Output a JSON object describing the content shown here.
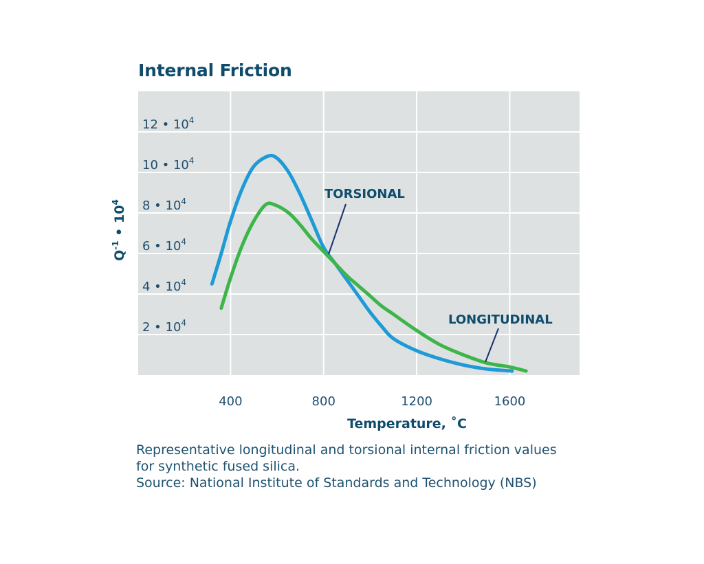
{
  "chart_data": {
    "type": "line",
    "title": "Internal Friction",
    "xlabel": "Temperature, ˚C",
    "ylabel": "Q-1 • 10⁴",
    "xlim": [
      0,
      1900
    ],
    "ylim": [
      0,
      14
    ],
    "x_ticks": [
      {
        "value": 400,
        "label": "400"
      },
      {
        "value": 800,
        "label": "800"
      },
      {
        "value": 1200,
        "label": "1200"
      },
      {
        "value": 1600,
        "label": "1600"
      }
    ],
    "y_ticks": [
      {
        "value": 2,
        "label": "2 • 10⁴"
      },
      {
        "value": 4,
        "label": "4 • 10⁴"
      },
      {
        "value": 6,
        "label": "6 • 10⁴"
      },
      {
        "value": 8,
        "label": "8 • 10⁴"
      },
      {
        "value": 10,
        "label": "10 • 10⁴"
      },
      {
        "value": 12,
        "label": "12 • 10⁴"
      }
    ],
    "x_gridlines": [
      0,
      400,
      800,
      1200,
      1600
    ],
    "grid": true,
    "series": [
      {
        "name": "TORSIONAL",
        "color": "#1e9ad6",
        "points": [
          [
            320,
            4.5
          ],
          [
            360,
            6.0
          ],
          [
            400,
            7.6
          ],
          [
            450,
            9.2
          ],
          [
            500,
            10.3
          ],
          [
            560,
            10.8
          ],
          [
            600,
            10.7
          ],
          [
            650,
            10.0
          ],
          [
            700,
            8.9
          ],
          [
            750,
            7.6
          ],
          [
            800,
            6.3
          ],
          [
            850,
            5.5
          ],
          [
            900,
            4.7
          ],
          [
            950,
            3.9
          ],
          [
            1000,
            3.1
          ],
          [
            1050,
            2.4
          ],
          [
            1100,
            1.8
          ],
          [
            1200,
            1.2
          ],
          [
            1300,
            0.8
          ],
          [
            1400,
            0.5
          ],
          [
            1500,
            0.3
          ],
          [
            1610,
            0.2
          ]
        ]
      },
      {
        "name": "LONGITUDINAL",
        "color": "#3db54a",
        "points": [
          [
            360,
            3.3
          ],
          [
            400,
            4.8
          ],
          [
            450,
            6.4
          ],
          [
            500,
            7.6
          ],
          [
            550,
            8.4
          ],
          [
            590,
            8.4
          ],
          [
            650,
            8.0
          ],
          [
            700,
            7.4
          ],
          [
            750,
            6.7
          ],
          [
            800,
            6.1
          ],
          [
            850,
            5.5
          ],
          [
            900,
            4.9
          ],
          [
            950,
            4.4
          ],
          [
            1000,
            3.9
          ],
          [
            1050,
            3.4
          ],
          [
            1100,
            3.0
          ],
          [
            1200,
            2.2
          ],
          [
            1300,
            1.5
          ],
          [
            1400,
            1.0
          ],
          [
            1500,
            0.6
          ],
          [
            1600,
            0.4
          ],
          [
            1670,
            0.2
          ]
        ]
      }
    ],
    "annotations": [
      {
        "text": "TORSIONAL",
        "series": "TORSIONAL"
      },
      {
        "text": "LONGITUDINAL",
        "series": "LONGITUDINAL"
      }
    ]
  },
  "caption": [
    "Representative longitudinal and torsional internal friction values",
    "for synthetic fused silica.",
    "Source: National Institute of Standards and Technology (NBS)"
  ],
  "colors": {
    "plot_bg": "#dde1e2",
    "grid": "#ffffff",
    "text_dark": "#0f4c6b",
    "text_tick": "#1f4e6e",
    "leader": "#1a2f6e"
  }
}
